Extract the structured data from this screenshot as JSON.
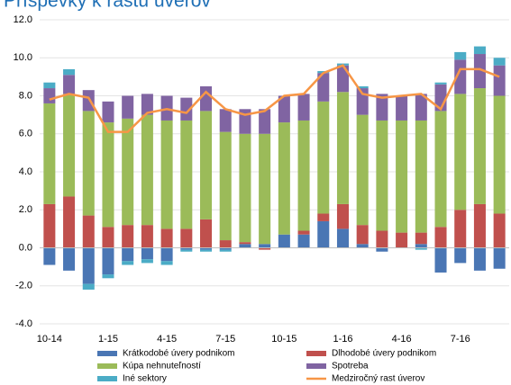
{
  "chart_data": {
    "type": "bar",
    "stacked": true,
    "title": "Príspevky k rastu úverov",
    "categories": [
      "10-14",
      null,
      null,
      "1-15",
      null,
      null,
      "4-15",
      null,
      null,
      "7-15",
      null,
      null,
      "10-15",
      null,
      null,
      "1-16",
      null,
      null,
      "4-16",
      null,
      null,
      "7-16",
      null,
      null
    ],
    "series": [
      {
        "name": "Krátkodobé úvery podnikom",
        "color": "#4a76b4",
        "values": [
          -0.9,
          -1.2,
          -1.9,
          -1.4,
          -0.7,
          -0.6,
          -0.7,
          -0.1,
          -0.1,
          -0.1,
          0.2,
          0.2,
          0.7,
          0.7,
          1.4,
          1.0,
          0.2,
          -0.2,
          0.0,
          0.2,
          -1.3,
          -0.8,
          -1.2,
          -1.1
        ]
      },
      {
        "name": "Dlhodobé úvery podnikom",
        "color": "#c0504d",
        "values": [
          2.3,
          2.7,
          1.7,
          1.1,
          1.2,
          1.2,
          1.0,
          1.0,
          1.5,
          0.4,
          0.1,
          -0.1,
          0.0,
          0.2,
          0.4,
          1.3,
          1.0,
          0.9,
          0.8,
          0.6,
          1.1,
          2.0,
          2.3,
          1.8
        ]
      },
      {
        "name": "Kúpa nehnuteľností",
        "color": "#9bbb59",
        "values": [
          5.3,
          5.4,
          5.5,
          5.5,
          5.6,
          5.8,
          5.7,
          5.7,
          5.7,
          5.7,
          5.7,
          5.8,
          5.9,
          5.8,
          5.9,
          5.9,
          5.8,
          5.8,
          5.9,
          5.9,
          6.1,
          6.1,
          6.1,
          6.2
        ]
      },
      {
        "name": "Spotreba",
        "color": "#8064a2",
        "values": [
          0.8,
          1.0,
          1.1,
          1.1,
          1.2,
          1.1,
          1.3,
          1.2,
          1.3,
          1.2,
          1.3,
          1.3,
          1.4,
          1.4,
          1.5,
          1.4,
          1.4,
          1.4,
          1.3,
          1.4,
          1.4,
          1.8,
          1.8,
          1.6
        ]
      },
      {
        "name": "Iné sektory",
        "color": "#4bacc6",
        "values": [
          0.3,
          0.3,
          -0.3,
          -0.2,
          -0.2,
          -0.2,
          -0.2,
          -0.1,
          -0.1,
          -0.1,
          0.0,
          0.0,
          0.0,
          0.0,
          0.1,
          0.1,
          0.1,
          0.0,
          0.0,
          -0.1,
          0.1,
          0.4,
          0.4,
          0.4
        ]
      },
      {
        "name": "Medziročný rast úverov",
        "type": "line",
        "color": "#f79646",
        "values": [
          7.8,
          8.1,
          7.9,
          6.1,
          6.1,
          7.1,
          7.3,
          7.1,
          8.2,
          7.3,
          7.0,
          7.2,
          8.0,
          8.1,
          9.2,
          9.6,
          8.1,
          7.9,
          8.0,
          8.1,
          7.3,
          9.4,
          9.4,
          9.0
        ]
      }
    ],
    "ylim": [
      -4,
      12
    ],
    "yticks": [
      {
        "value": -4,
        "label": "-4.0"
      },
      {
        "value": -2,
        "label": "-2.0"
      },
      {
        "value": 0,
        "label": "0.0"
      },
      {
        "value": 2,
        "label": "2.0"
      },
      {
        "value": 4,
        "label": "4.0"
      },
      {
        "value": 6,
        "label": "6.0"
      },
      {
        "value": 8,
        "label": "8.0"
      },
      {
        "value": 10,
        "label": "10.0"
      },
      {
        "value": 12,
        "label": "12.0"
      }
    ],
    "grid": true,
    "legend": "bottom"
  }
}
